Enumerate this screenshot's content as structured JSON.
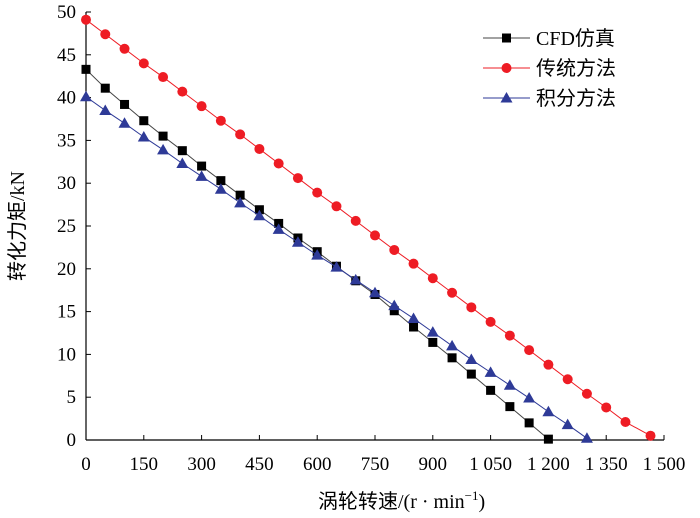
{
  "chart_data": {
    "type": "line",
    "title": "",
    "xlabel": "涡轮转速/(r·min⁻¹)",
    "xlabel_main": "涡轮转速/(r · min",
    "xlabel_sup": "−1",
    "xlabel_close": ")",
    "ylabel": "转化力矩/kN",
    "xlim": [
      0,
      1500
    ],
    "ylim": [
      0,
      50
    ],
    "x_ticks": [
      0,
      150,
      300,
      450,
      600,
      750,
      900,
      1050,
      1200,
      1350,
      1500
    ],
    "x_tick_labels": [
      "0",
      "150",
      "300",
      "450",
      "600",
      "750",
      "900",
      "1 050",
      "1 200",
      "1 350",
      "1 500"
    ],
    "y_ticks": [
      0,
      5,
      10,
      15,
      20,
      25,
      30,
      35,
      40,
      45,
      50
    ],
    "y_tick_labels": [
      "0",
      "5",
      "10",
      "15",
      "20",
      "25",
      "30",
      "35",
      "40",
      "45",
      "50"
    ],
    "grid": false,
    "legend_position": "top-right",
    "series": [
      {
        "name": "CFD仿真",
        "marker": "square",
        "color": "#000000",
        "line_color": "#444444",
        "x": [
          0,
          50,
          100,
          150,
          200,
          250,
          300,
          350,
          400,
          450,
          500,
          550,
          600,
          650,
          700,
          750,
          800,
          850,
          900,
          950,
          1000,
          1050,
          1100,
          1150,
          1200
        ],
        "y": [
          43.3,
          41.1,
          39.2,
          37.3,
          35.5,
          33.8,
          32.0,
          30.3,
          28.6,
          26.9,
          25.3,
          23.6,
          22.0,
          20.3,
          18.6,
          17.0,
          15.1,
          13.2,
          11.4,
          9.6,
          7.7,
          5.8,
          3.9,
          2.0,
          0.1
        ]
      },
      {
        "name": "传统方法",
        "marker": "circle",
        "color": "#ee1c24",
        "line_color": "#ee1c24",
        "x": [
          0,
          50,
          100,
          150,
          200,
          250,
          300,
          350,
          400,
          450,
          500,
          550,
          600,
          650,
          700,
          750,
          800,
          850,
          900,
          950,
          1000,
          1050,
          1100,
          1150,
          1200,
          1250,
          1300,
          1350,
          1400
        ],
        "y": [
          49.1,
          47.4,
          45.7,
          44.0,
          42.4,
          40.7,
          39.0,
          37.3,
          35.7,
          34.0,
          32.3,
          30.6,
          28.9,
          27.3,
          25.6,
          23.9,
          22.2,
          20.6,
          18.9,
          17.2,
          15.5,
          13.8,
          12.2,
          10.5,
          8.8,
          7.1,
          5.4,
          3.8,
          2.1
        ]
      },
      {
        "name": "积分方法",
        "marker": "triangle",
        "color": "#2e3a97",
        "line_color": "#2e3a97",
        "x": [
          0,
          50,
          100,
          150,
          200,
          250,
          300,
          350,
          400,
          450,
          500,
          550,
          600,
          650,
          700,
          750,
          800,
          850,
          900,
          950,
          1000,
          1050,
          1100,
          1150,
          1200,
          1250,
          1300
        ],
        "y": [
          40.1,
          38.5,
          37.0,
          35.4,
          33.9,
          32.3,
          30.8,
          29.3,
          27.7,
          26.2,
          24.6,
          23.1,
          21.6,
          20.2,
          18.7,
          17.2,
          15.7,
          14.2,
          12.6,
          11.0,
          9.4,
          7.9,
          6.4,
          4.9,
          3.3,
          1.8,
          0.2
        ]
      }
    ],
    "extra_points": [
      {
        "series": "传统方法",
        "x": 1465,
        "y": 0.5
      }
    ]
  }
}
